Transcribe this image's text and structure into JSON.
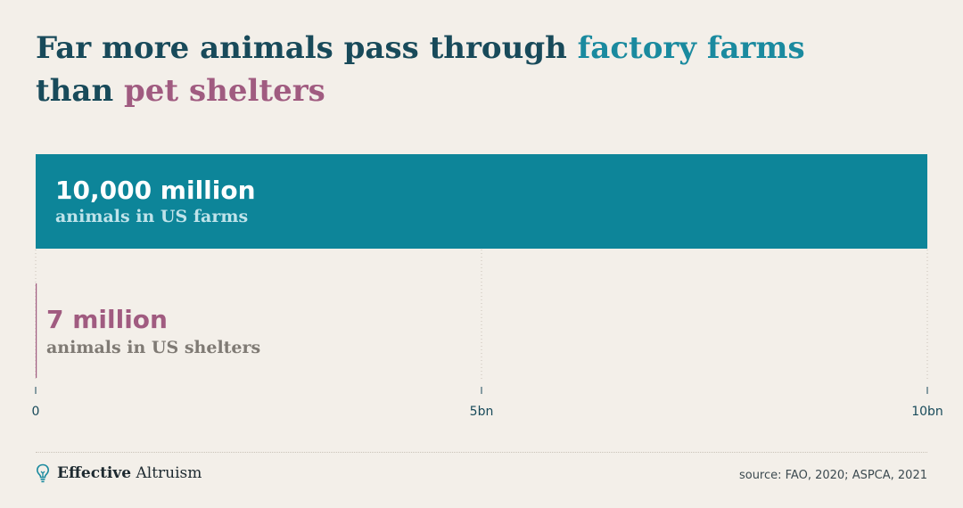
{
  "title": {
    "line1_prefix": "Far more animals pass through ",
    "line1_highlight": "factory farms",
    "line2_prefix": "than ",
    "line2_highlight": "pet shelters"
  },
  "colors": {
    "farm": "#0d8599",
    "shelter": "#a05b80",
    "title": "#184a5a",
    "background": "#f3efe9"
  },
  "chart_data": {
    "type": "bar",
    "orientation": "horizontal",
    "xlim": [
      0,
      10000
    ],
    "unit": "million",
    "ticks": [
      {
        "value": 0,
        "label": "0"
      },
      {
        "value": 5000,
        "label": "5bn"
      },
      {
        "value": 10000,
        "label": "10bn"
      }
    ],
    "bars": [
      {
        "value": 10000,
        "value_label": "10,000 million",
        "description": "animals in US farms",
        "color": "#0d8599"
      },
      {
        "value": 7,
        "value_label": "7 million",
        "description": "animals in US shelters",
        "color": "#a05b80"
      }
    ]
  },
  "footer": {
    "logo_bold": "Effective",
    "logo_regular": "Altruism",
    "logo_icon": "lightbulb-icon",
    "source": "source: FAO, 2020; ASPCA, 2021"
  }
}
